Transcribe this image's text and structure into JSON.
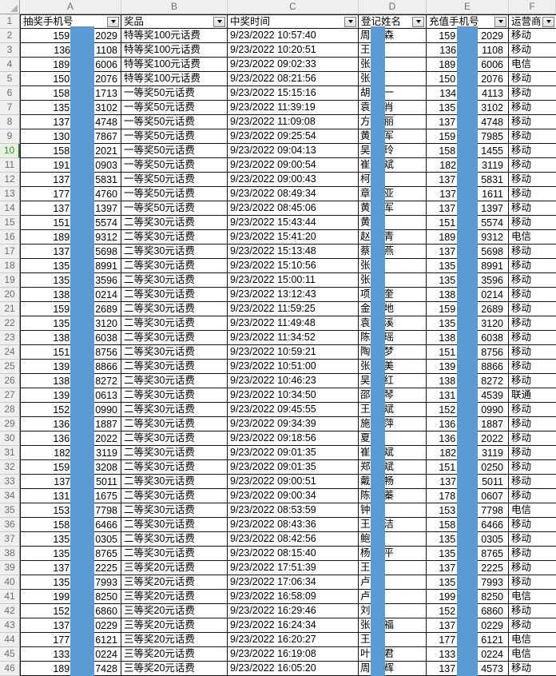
{
  "sheet": {
    "column_letters": [
      "A",
      "B",
      "C",
      "D",
      "E",
      "F"
    ],
    "first_row_label": "1",
    "selected_row": 10,
    "selected_cell": "A10",
    "colors": {
      "redaction_bar": "#5b9bd5",
      "selection_green": "#217346",
      "header_strip": "#efefef",
      "gridline": "#141414"
    },
    "headers": [
      {
        "label": "抽奖手机号"
      },
      {
        "label": "奖品"
      },
      {
        "label": "中奖时间"
      },
      {
        "label": "登记姓名"
      },
      {
        "label": "充值手机号"
      },
      {
        "label": "运营商"
      }
    ],
    "rows": [
      {
        "n": "2",
        "a_pre": "159",
        "a_suf": "2029",
        "prize": "特等奖100元话费",
        "time": "9/23/2022 10:57:40",
        "name_pre": "周",
        "name_suf": "森",
        "e_pre": "159",
        "e_suf": "2029",
        "carrier": "移动"
      },
      {
        "n": "3",
        "a_pre": "136",
        "a_suf": "1108",
        "prize": "特等奖100元话费",
        "time": "9/23/2022 10:20:51",
        "name_pre": "王",
        "name_suf": "",
        "e_pre": "136",
        "e_suf": "1108",
        "carrier": "移动"
      },
      {
        "n": "4",
        "a_pre": "189",
        "a_suf": "6006",
        "prize": "特等奖100元话费",
        "time": "9/23/2022 09:02:33",
        "name_pre": "张",
        "name_suf": "",
        "e_pre": "189",
        "e_suf": "6006",
        "carrier": "电信"
      },
      {
        "n": "5",
        "a_pre": "150",
        "a_suf": "2076",
        "prize": "特等奖100元话费",
        "time": "9/23/2022 08:21:56",
        "name_pre": "张",
        "name_suf": "",
        "e_pre": "150",
        "e_suf": "2076",
        "carrier": "移动"
      },
      {
        "n": "6",
        "a_pre": "158",
        "a_suf": "1713",
        "prize": "一等奖50元话费",
        "time": "9/23/2022 15:15:16",
        "name_pre": "胡",
        "name_suf": "一",
        "e_pre": "134",
        "e_suf": "4113",
        "carrier": "移动"
      },
      {
        "n": "7",
        "a_pre": "135",
        "a_suf": "3102",
        "prize": "一等奖50元话费",
        "time": "9/23/2022 11:39:19",
        "name_pre": "袁",
        "name_suf": "肖",
        "e_pre": "135",
        "e_suf": "3102",
        "carrier": "移动"
      },
      {
        "n": "8",
        "a_pre": "137",
        "a_suf": "4748",
        "prize": "一等奖50元话费",
        "time": "9/23/2022 11:09:08",
        "name_pre": "方",
        "name_suf": "丽",
        "e_pre": "137",
        "e_suf": "4748",
        "carrier": "移动"
      },
      {
        "n": "9",
        "a_pre": "130",
        "a_suf": "7867",
        "prize": "一等奖50元话费",
        "time": "9/23/2022 09:25:54",
        "name_pre": "黄",
        "name_suf": "军",
        "e_pre": "159",
        "e_suf": "7985",
        "carrier": "移动"
      },
      {
        "n": "10",
        "a_pre": "158",
        "a_suf": "2021",
        "prize": "一等奖50元话费",
        "time": "9/23/2022 09:04:13",
        "name_pre": "吴",
        "name_suf": "玲",
        "e_pre": "158",
        "e_suf": "1455",
        "carrier": "移动"
      },
      {
        "n": "11",
        "a_pre": "191",
        "a_suf": "0903",
        "prize": "一等奖50元话费",
        "time": "9/23/2022 09:00:54",
        "name_pre": "崔",
        "name_suf": "斌",
        "e_pre": "182",
        "e_suf": "3119",
        "carrier": "移动"
      },
      {
        "n": "12",
        "a_pre": "137",
        "a_suf": "5831",
        "prize": "一等奖50元话费",
        "time": "9/23/2022 09:00:43",
        "name_pre": "柯",
        "name_suf": "",
        "e_pre": "137",
        "e_suf": "5831",
        "carrier": "移动"
      },
      {
        "n": "13",
        "a_pre": "177",
        "a_suf": "4760",
        "prize": "一等奖50元话费",
        "time": "9/23/2022 08:49:34",
        "name_pre": "章",
        "name_suf": "亚",
        "e_pre": "137",
        "e_suf": "1611",
        "carrier": "移动"
      },
      {
        "n": "14",
        "a_pre": "137",
        "a_suf": "1397",
        "prize": "一等奖50元话费",
        "time": "9/23/2022 08:45:06",
        "name_pre": "黄",
        "name_suf": "军",
        "e_pre": "137",
        "e_suf": "1397",
        "carrier": "移动"
      },
      {
        "n": "15",
        "a_pre": "151",
        "a_suf": "5574",
        "prize": "二等奖30元话费",
        "time": "9/23/2022 15:43:44",
        "name_pre": "黄",
        "name_suf": "",
        "e_pre": "151",
        "e_suf": "5574",
        "carrier": "移动"
      },
      {
        "n": "16",
        "a_pre": "189",
        "a_suf": "9312",
        "prize": "二等奖30元话费",
        "time": "9/23/2022 15:41:20",
        "name_pre": "赵",
        "name_suf": "青",
        "e_pre": "189",
        "e_suf": "9312",
        "carrier": "电信"
      },
      {
        "n": "17",
        "a_pre": "137",
        "a_suf": "5698",
        "prize": "二等奖30元话费",
        "time": "9/23/2022 15:13:48",
        "name_pre": "蔡",
        "name_suf": "燕",
        "e_pre": "137",
        "e_suf": "5698",
        "carrier": "移动"
      },
      {
        "n": "18",
        "a_pre": "135",
        "a_suf": "8991",
        "prize": "二等奖30元话费",
        "time": "9/23/2022 15:10:56",
        "name_pre": "张",
        "name_suf": "",
        "e_pre": "135",
        "e_suf": "8991",
        "carrier": "移动"
      },
      {
        "n": "19",
        "a_pre": "135",
        "a_suf": "3596",
        "prize": "二等奖30元话费",
        "time": "9/23/2022 15:00:11",
        "name_pre": "张",
        "name_suf": "",
        "e_pre": "135",
        "e_suf": "3596",
        "carrier": "移动"
      },
      {
        "n": "20",
        "a_pre": "138",
        "a_suf": "0214",
        "prize": "二等奖30元话费",
        "time": "9/23/2022 13:12:43",
        "name_pre": "项",
        "name_suf": "奎",
        "e_pre": "138",
        "e_suf": "0214",
        "carrier": "移动"
      },
      {
        "n": "21",
        "a_pre": "159",
        "a_suf": "2689",
        "prize": "二等奖30元话费",
        "time": "9/23/2022 11:59:25",
        "name_pre": "金",
        "name_suf": "地",
        "e_pre": "159",
        "e_suf": "2689",
        "carrier": "移动"
      },
      {
        "n": "22",
        "a_pre": "135",
        "a_suf": "3120",
        "prize": "二等奖30元话费",
        "time": "9/23/2022 11:49:48",
        "name_pre": "袁",
        "name_suf": "溪",
        "e_pre": "135",
        "e_suf": "3120",
        "carrier": "移动"
      },
      {
        "n": "23",
        "a_pre": "138",
        "a_suf": "6038",
        "prize": "二等奖30元话费",
        "time": "9/23/2022 11:34:52",
        "name_pre": "陈",
        "name_suf": "瑶",
        "e_pre": "138",
        "e_suf": "6038",
        "carrier": "移动"
      },
      {
        "n": "24",
        "a_pre": "151",
        "a_suf": "8756",
        "prize": "二等奖30元话费",
        "time": "9/23/2022 10:59:21",
        "name_pre": "陶",
        "name_suf": "梦",
        "e_pre": "151",
        "e_suf": "8756",
        "carrier": "移动"
      },
      {
        "n": "25",
        "a_pre": "139",
        "a_suf": "8866",
        "prize": "二等奖30元话费",
        "time": "9/23/2022 10:51:00",
        "name_pre": "张",
        "name_suf": "美",
        "e_pre": "139",
        "e_suf": "8866",
        "carrier": "移动"
      },
      {
        "n": "26",
        "a_pre": "138",
        "a_suf": "8272",
        "prize": "二等奖30元话费",
        "time": "9/23/2022 10:46:23",
        "name_pre": "吴",
        "name_suf": "红",
        "e_pre": "138",
        "e_suf": "8272",
        "carrier": "移动"
      },
      {
        "n": "27",
        "a_pre": "139",
        "a_suf": "0613",
        "prize": "二等奖30元话费",
        "time": "9/23/2022 10:34:50",
        "name_pre": "邵",
        "name_suf": "琴",
        "e_pre": "131",
        "e_suf": "4539",
        "carrier": "联通"
      },
      {
        "n": "28",
        "a_pre": "152",
        "a_suf": "0990",
        "prize": "二等奖30元话费",
        "time": "9/23/2022 09:45:55",
        "name_pre": "王",
        "name_suf": "斌",
        "e_pre": "152",
        "e_suf": "0990",
        "carrier": "移动"
      },
      {
        "n": "29",
        "a_pre": "136",
        "a_suf": "1887",
        "prize": "二等奖30元话费",
        "time": "9/23/2022 09:34:39",
        "name_pre": "施",
        "name_suf": "萍",
        "e_pre": "136",
        "e_suf": "1887",
        "carrier": "移动"
      },
      {
        "n": "30",
        "a_pre": "136",
        "a_suf": "2022",
        "prize": "二等奖30元话费",
        "time": "9/23/2022 09:18:56",
        "name_pre": "夏",
        "name_suf": "",
        "e_pre": "136",
        "e_suf": "2022",
        "carrier": "移动"
      },
      {
        "n": "31",
        "a_pre": "182",
        "a_suf": "3119",
        "prize": "二等奖30元话费",
        "time": "9/23/2022 09:01:35",
        "name_pre": "崔",
        "name_suf": "斌",
        "e_pre": "182",
        "e_suf": "3119",
        "carrier": "移动"
      },
      {
        "n": "32",
        "a_pre": "159",
        "a_suf": "3208",
        "prize": "二等奖30元话费",
        "time": "9/23/2022 09:01:35",
        "name_pre": "郑",
        "name_suf": "斌",
        "e_pre": "151",
        "e_suf": "0250",
        "carrier": "移动"
      },
      {
        "n": "33",
        "a_pre": "137",
        "a_suf": "5011",
        "prize": "二等奖30元话费",
        "time": "9/23/2022 09:00:51",
        "name_pre": "戴",
        "name_suf": "畅",
        "e_pre": "137",
        "e_suf": "5011",
        "carrier": "移动"
      },
      {
        "n": "34",
        "a_pre": "131",
        "a_suf": "1675",
        "prize": "二等奖30元话费",
        "time": "9/23/2022 09:00:34",
        "name_pre": "陈",
        "name_suf": "蓁",
        "e_pre": "178",
        "e_suf": "0607",
        "carrier": "移动"
      },
      {
        "n": "35",
        "a_pre": "153",
        "a_suf": "7798",
        "prize": "二等奖30元话费",
        "time": "9/23/2022 08:53:59",
        "name_pre": "钟",
        "name_suf": "",
        "e_pre": "153",
        "e_suf": "7798",
        "carrier": "电信"
      },
      {
        "n": "36",
        "a_pre": "158",
        "a_suf": "6466",
        "prize": "二等奖30元话费",
        "time": "9/23/2022 08:43:36",
        "name_pre": "王",
        "name_suf": "洁",
        "e_pre": "158",
        "e_suf": "6466",
        "carrier": "移动"
      },
      {
        "n": "37",
        "a_pre": "135",
        "a_suf": "0305",
        "prize": "二等奖30元话费",
        "time": "9/23/2022 08:42:56",
        "name_pre": "鲍",
        "name_suf": "",
        "e_pre": "135",
        "e_suf": "0305",
        "carrier": "移动"
      },
      {
        "n": "38",
        "a_pre": "135",
        "a_suf": "8765",
        "prize": "二等奖30元话费",
        "time": "9/23/2022 08:15:40",
        "name_pre": "杨",
        "name_suf": "平",
        "e_pre": "135",
        "e_suf": "8765",
        "carrier": "移动"
      },
      {
        "n": "39",
        "a_pre": "137",
        "a_suf": "2225",
        "prize": "三等奖20元话费",
        "time": "9/23/2022 17:51:39",
        "name_pre": "王",
        "name_suf": "",
        "e_pre": "137",
        "e_suf": "2225",
        "carrier": "移动"
      },
      {
        "n": "40",
        "a_pre": "135",
        "a_suf": "7993",
        "prize": "三等奖20元话费",
        "time": "9/23/2022 17:06:34",
        "name_pre": "卢",
        "name_suf": "",
        "e_pre": "135",
        "e_suf": "7993",
        "carrier": "移动"
      },
      {
        "n": "41",
        "a_pre": "199",
        "a_suf": "8250",
        "prize": "三等奖20元话费",
        "time": "9/23/2022 16:58:09",
        "name_pre": "卢",
        "name_suf": "",
        "e_pre": "199",
        "e_suf": "8250",
        "carrier": "电信"
      },
      {
        "n": "42",
        "a_pre": "152",
        "a_suf": "6860",
        "prize": "三等奖20元话费",
        "time": "9/23/2022 16:29:46",
        "name_pre": "刘",
        "name_suf": "",
        "e_pre": "152",
        "e_suf": "6860",
        "carrier": "移动"
      },
      {
        "n": "43",
        "a_pre": "137",
        "a_suf": "0229",
        "prize": "三等奖20元话费",
        "time": "9/23/2022 16:24:34",
        "name_pre": "张",
        "name_suf": "福",
        "e_pre": "137",
        "e_suf": "0229",
        "carrier": "移动"
      },
      {
        "n": "44",
        "a_pre": "177",
        "a_suf": "6121",
        "prize": "三等奖20元话费",
        "time": "9/23/2022 16:20:27",
        "name_pre": "王",
        "name_suf": "",
        "e_pre": "177",
        "e_suf": "6121",
        "carrier": "电信"
      },
      {
        "n": "45",
        "a_pre": "133",
        "a_suf": "0224",
        "prize": "三等奖20元话费",
        "time": "9/23/2022 16:19:08",
        "name_pre": "叶",
        "name_suf": "君",
        "e_pre": "133",
        "e_suf": "0224",
        "carrier": "电信"
      },
      {
        "n": "46",
        "a_pre": "189",
        "a_suf": "7428",
        "prize": "三等奖20元话费",
        "time": "9/23/2022 16:05:20",
        "name_pre": "周",
        "name_suf": "辉",
        "e_pre": "137",
        "e_suf": "4573",
        "carrier": "移动"
      }
    ]
  }
}
